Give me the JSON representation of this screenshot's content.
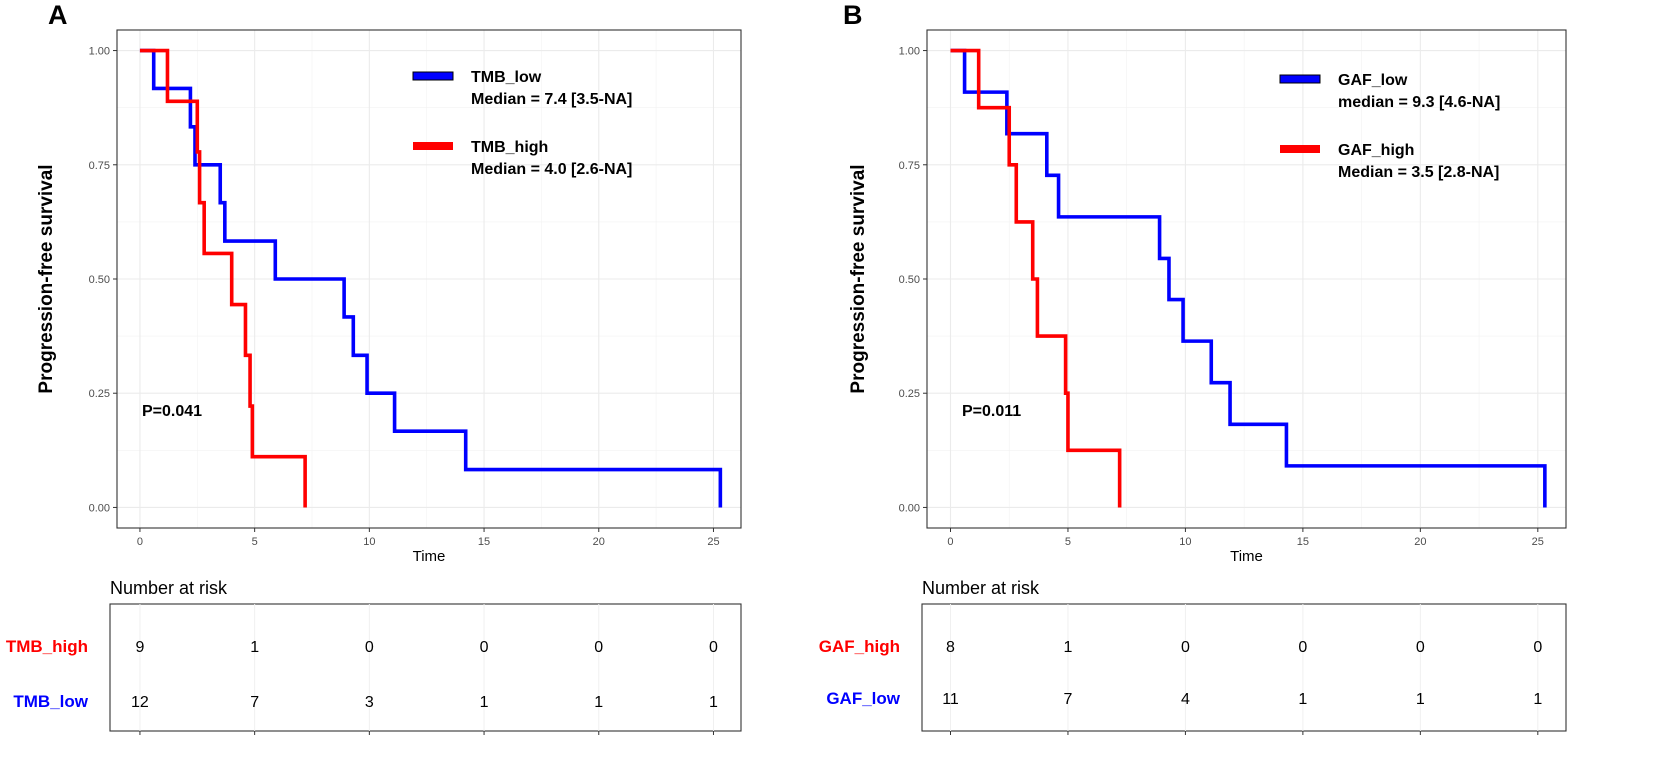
{
  "chart_data": [
    {
      "panel": "A",
      "type": "line",
      "subtype": "kaplan-meier",
      "ylabel": "Progression-free survival",
      "xlabel": "Time",
      "xticks": [
        0,
        5,
        10,
        15,
        20,
        25
      ],
      "yticks": [
        "0.00",
        "0.25",
        "0.50",
        "0.75",
        "1.00"
      ],
      "xlim": [
        -1,
        26.2
      ],
      "ylim": [
        -0.045,
        1.045
      ],
      "pvalue": "P=0.041",
      "series": [
        {
          "name": "TMB_low",
          "color": "#0000ff",
          "legend_line1": "TMB_low",
          "legend_line2": "Median = 7.4 [3.5-NA]",
          "steps": [
            [
              0,
              1.0
            ],
            [
              0.6,
              0.917
            ],
            [
              2.2,
              0.833
            ],
            [
              2.4,
              0.75
            ],
            [
              3.5,
              0.667
            ],
            [
              3.7,
              0.583
            ],
            [
              5.9,
              0.5
            ],
            [
              8.9,
              0.417
            ],
            [
              9.3,
              0.333
            ],
            [
              9.9,
              0.25
            ],
            [
              11.1,
              0.167
            ],
            [
              14.2,
              0.083
            ],
            [
              25.3,
              0.0
            ]
          ]
        },
        {
          "name": "TMB_high",
          "color": "#ff0000",
          "legend_line1": "TMB_high",
          "legend_line2": "Median = 4.0 [2.6-NA]",
          "steps": [
            [
              0,
              1.0
            ],
            [
              1.2,
              0.889
            ],
            [
              2.5,
              0.778
            ],
            [
              2.6,
              0.667
            ],
            [
              2.8,
              0.556
            ],
            [
              4.0,
              0.444
            ],
            [
              4.6,
              0.333
            ],
            [
              4.8,
              0.222
            ],
            [
              4.9,
              0.111
            ],
            [
              7.2,
              0.0
            ]
          ]
        }
      ],
      "risk_table": {
        "title": "Number at risk",
        "times": [
          0,
          5,
          10,
          15,
          20,
          25
        ],
        "rows": [
          {
            "label": "TMB_high",
            "color": "#ff0000",
            "values": [
              "9",
              "1",
              "0",
              "0",
              "0",
              "0"
            ]
          },
          {
            "label": "TMB_low",
            "color": "#0000ff",
            "values": [
              "12",
              "7",
              "3",
              "1",
              "1",
              "1"
            ]
          }
        ]
      }
    },
    {
      "panel": "B",
      "type": "line",
      "subtype": "kaplan-meier",
      "ylabel": "Progression-free survival",
      "xlabel": "Time",
      "xticks": [
        0,
        5,
        10,
        15,
        20,
        25
      ],
      "yticks": [
        "0.00",
        "0.25",
        "0.50",
        "0.75",
        "1.00"
      ],
      "xlim": [
        -1,
        26.2
      ],
      "ylim": [
        -0.045,
        1.045
      ],
      "pvalue": "P=0.011",
      "series": [
        {
          "name": "GAF_low",
          "color": "#0000ff",
          "legend_line1": "GAF_low",
          "legend_line2": "median = 9.3 [4.6-NA]",
          "steps": [
            [
              0,
              1.0
            ],
            [
              0.6,
              0.909
            ],
            [
              2.4,
              0.818
            ],
            [
              4.1,
              0.727
            ],
            [
              4.6,
              0.636
            ],
            [
              8.9,
              0.545
            ],
            [
              9.3,
              0.455
            ],
            [
              9.9,
              0.364
            ],
            [
              11.1,
              0.273
            ],
            [
              11.9,
              0.182
            ],
            [
              14.3,
              0.091
            ],
            [
              25.3,
              0.0
            ]
          ]
        },
        {
          "name": "GAF_high",
          "color": "#ff0000",
          "legend_line1": "GAF_high",
          "legend_line2": "Median = 3.5 [2.8-NA]",
          "steps": [
            [
              0,
              1.0
            ],
            [
              1.2,
              0.875
            ],
            [
              2.5,
              0.75
            ],
            [
              2.8,
              0.625
            ],
            [
              3.5,
              0.5
            ],
            [
              3.7,
              0.375
            ],
            [
              4.9,
              0.25
            ],
            [
              5.0,
              0.125
            ],
            [
              7.2,
              0.0
            ]
          ]
        }
      ],
      "risk_table": {
        "title": "Number at risk",
        "times": [
          0,
          5,
          10,
          15,
          20,
          25
        ],
        "rows": [
          {
            "label": "GAF_high",
            "color": "#ff0000",
            "values": [
              "8",
              "1",
              "0",
              "0",
              "0",
              "0"
            ]
          },
          {
            "label": "GAF_low",
            "color": "#0000ff",
            "values": [
              "11",
              "7",
              "4",
              "1",
              "1",
              "1"
            ]
          }
        ]
      }
    }
  ]
}
